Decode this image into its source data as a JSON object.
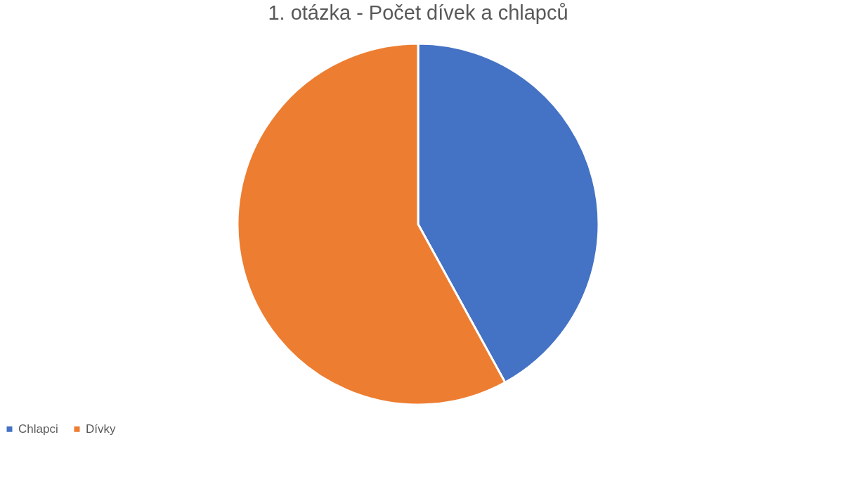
{
  "chart_data": {
    "type": "pie",
    "title": "1. otázka - Počet dívek a chlapců",
    "categories": [
      "Chlapci",
      "Dívky"
    ],
    "values": [
      42,
      58
    ],
    "colors": [
      "#4472c4",
      "#ed7d31"
    ],
    "legend": "bottom"
  }
}
